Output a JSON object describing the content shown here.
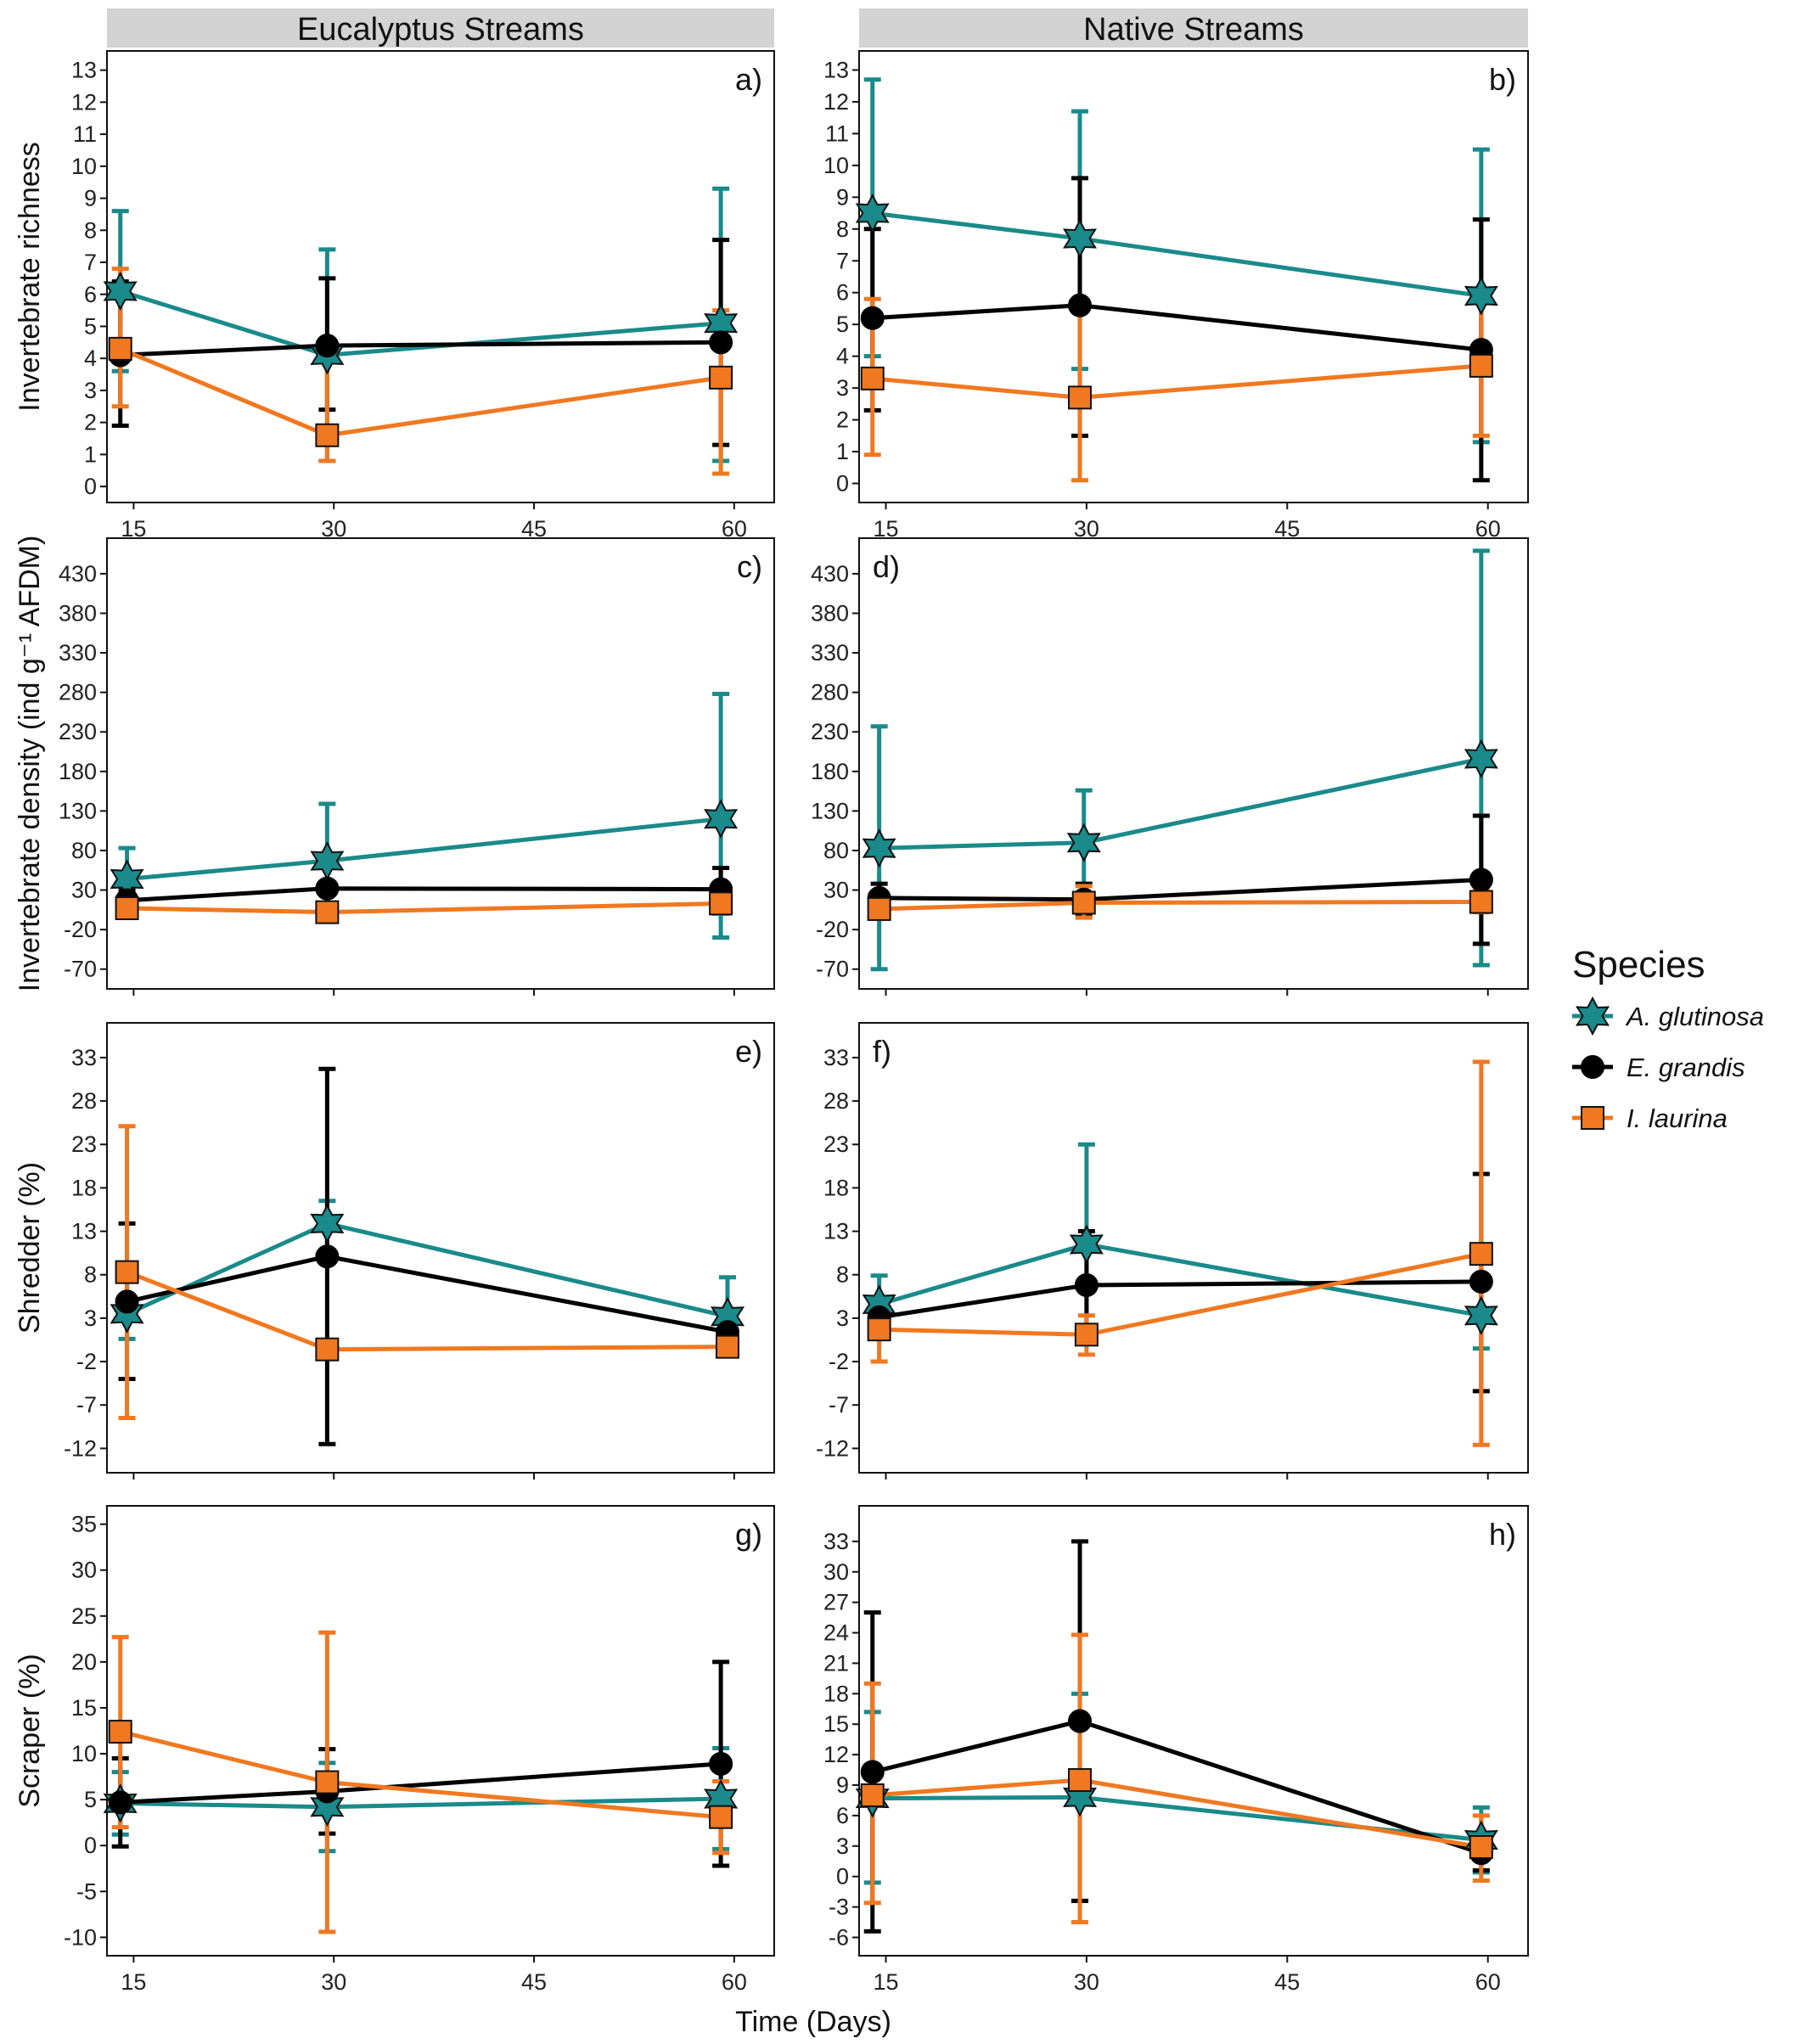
{
  "figure": {
    "strips": [
      "Eucalyptus Streams",
      "Native Streams"
    ],
    "xlabel": "Time (Days)",
    "legend": {
      "title": "Species",
      "placement": "right",
      "entries": [
        {
          "name": "A. glutinosa",
          "color": "#1a8a8a",
          "marker": "star-icon"
        },
        {
          "name": "E. grandis",
          "color": "#000000",
          "marker": "circle-icon"
        },
        {
          "name": "I. laurina",
          "color": "#f07820",
          "marker": "square-icon"
        }
      ]
    }
  },
  "chart_data": [
    {
      "type": "line",
      "panel": "a)",
      "strip": "Eucalyptus Streams",
      "ylabel": "Invertebrate richness",
      "xlim": [
        13,
        63
      ],
      "ylim": [
        -0.5,
        13.6
      ],
      "xticks": [
        15,
        30,
        45,
        60
      ],
      "xticklabels": [
        "15",
        "30",
        "45",
        "60"
      ],
      "yticks": [
        0,
        1,
        2,
        3,
        4,
        5,
        6,
        7,
        8,
        9,
        10,
        11,
        12,
        13
      ],
      "yticklabels": [
        "0",
        "1",
        "2",
        "3",
        "4",
        "5",
        "6",
        "7",
        "8",
        "9",
        "10",
        "11",
        "12",
        "13"
      ],
      "x": [
        14,
        29.5,
        59
      ],
      "series": [
        {
          "name": "A. glutinosa",
          "values": [
            6.1,
            4.1,
            5.1
          ],
          "err_low": [
            3.6,
            0.8,
            0.8
          ],
          "err_high": [
            8.6,
            7.4,
            9.3
          ]
        },
        {
          "name": "E. grandis",
          "values": [
            4.1,
            4.4,
            4.5
          ],
          "err_low": [
            1.9,
            2.4,
            1.3
          ],
          "err_high": [
            6.4,
            6.5,
            7.7
          ]
        },
        {
          "name": "I. laurina",
          "values": [
            4.3,
            1.6,
            3.4
          ],
          "err_low": [
            2.5,
            0.8,
            0.4
          ],
          "err_high": [
            6.8,
            4.3,
            5.5
          ]
        }
      ]
    },
    {
      "type": "line",
      "panel": "b)",
      "strip": "Native Streams",
      "ylabel": "",
      "xlim": [
        13,
        63
      ],
      "ylim": [
        -0.6,
        13.6
      ],
      "xticks": [
        15,
        30,
        45,
        60
      ],
      "xticklabels": [
        "15",
        "30",
        "45",
        "60"
      ],
      "yticks": [
        0,
        1,
        2,
        3,
        4,
        5,
        6,
        7,
        8,
        9,
        10,
        11,
        12,
        13
      ],
      "yticklabels": [
        "0",
        "1",
        "2",
        "3",
        "4",
        "5",
        "6",
        "7",
        "8",
        "9",
        "10",
        "11",
        "12",
        "13"
      ],
      "x": [
        14,
        29.5,
        59.5
      ],
      "series": [
        {
          "name": "A. glutinosa",
          "values": [
            8.5,
            7.7,
            5.9
          ],
          "err_low": [
            4.0,
            3.6,
            1.3
          ],
          "err_high": [
            12.7,
            11.7,
            10.5
          ]
        },
        {
          "name": "E. grandis",
          "values": [
            5.2,
            5.6,
            4.2
          ],
          "err_low": [
            2.3,
            1.5,
            0.1
          ],
          "err_high": [
            8.0,
            9.6,
            8.3
          ]
        },
        {
          "name": "I. laurina",
          "values": [
            3.3,
            2.7,
            3.7
          ],
          "err_low": [
            0.9,
            0.1,
            1.5
          ],
          "err_high": [
            5.8,
            5.6,
            5.8
          ]
        }
      ]
    },
    {
      "type": "line",
      "panel": "c)",
      "strip": "Eucalyptus Streams",
      "ylabel": "Invertebrate  density (ind g⁻¹ AFDM)",
      "xlim": [
        13,
        63
      ],
      "ylim": [
        -95,
        475
      ],
      "xticks": [
        15,
        30,
        45,
        60
      ],
      "xticklabels": [
        "",
        "",
        "",
        ""
      ],
      "yticks": [
        -70,
        -20,
        30,
        80,
        130,
        180,
        230,
        280,
        330,
        380,
        430
      ],
      "yticklabels": [
        "-70",
        "-20",
        "30",
        "80",
        "130",
        "180",
        "230",
        "280",
        "330",
        "380",
        "430"
      ],
      "x": [
        14.5,
        29.5,
        59
      ],
      "series": [
        {
          "name": "A. glutinosa",
          "values": [
            44,
            67,
            120
          ],
          "err_low": [
            7,
            0,
            -30
          ],
          "err_high": [
            83,
            139,
            278
          ]
        },
        {
          "name": "E. grandis",
          "values": [
            17,
            32,
            31
          ],
          "err_low": [
            2,
            3,
            0
          ],
          "err_high": [
            30,
            60,
            58
          ]
        },
        {
          "name": "I. laurina",
          "values": [
            7,
            2,
            13
          ],
          "err_low": [
            2,
            -1,
            0
          ],
          "err_high": [
            12,
            5,
            28
          ]
        }
      ]
    },
    {
      "type": "line",
      "panel": "d)",
      "strip": "Native Streams",
      "ylabel": "",
      "xlim": [
        13,
        63
      ],
      "ylim": [
        -95,
        475
      ],
      "xticks": [
        15,
        30,
        45,
        60
      ],
      "xticklabels": [
        "",
        "",
        "",
        ""
      ],
      "yticks": [
        -70,
        -20,
        30,
        80,
        130,
        180,
        230,
        280,
        330,
        380,
        430
      ],
      "yticklabels": [
        "-70",
        "-20",
        "30",
        "80",
        "130",
        "180",
        "230",
        "280",
        "330",
        "380",
        "430"
      ],
      "x": [
        14.5,
        29.8,
        59.5
      ],
      "series": [
        {
          "name": "A. glutinosa",
          "values": [
            83,
            90,
            196
          ],
          "err_low": [
            -70,
            23,
            -65
          ],
          "err_high": [
            237,
            156,
            459
          ]
        },
        {
          "name": "E. grandis",
          "values": [
            20,
            18,
            43
          ],
          "err_low": [
            2,
            -2,
            -38
          ],
          "err_high": [
            38,
            38,
            124
          ]
        },
        {
          "name": "I. laurina",
          "values": [
            6,
            14,
            15
          ],
          "err_low": [
            -5,
            -5,
            2
          ],
          "err_high": [
            15,
            35,
            30
          ]
        }
      ]
    },
    {
      "type": "line",
      "panel": "e)",
      "strip": "Eucalyptus Streams",
      "ylabel": "Shredder (%)",
      "xlim": [
        13,
        63
      ],
      "ylim": [
        -14.8,
        37
      ],
      "xticks": [
        15,
        30,
        45,
        60
      ],
      "xticklabels": [
        "",
        "",
        "",
        ""
      ],
      "yticks": [
        -12,
        -7,
        -2,
        3,
        8,
        13,
        18,
        23,
        28,
        33
      ],
      "yticklabels": [
        "-12",
        "-7",
        "-2",
        "3",
        "8",
        "13",
        "18",
        "23",
        "28",
        "33"
      ],
      "x": [
        14.5,
        29.5,
        59.5
      ],
      "series": [
        {
          "name": "A. glutinosa",
          "values": [
            3.5,
            13.9,
            3.2
          ],
          "err_low": [
            0.6,
            10.8,
            -1.4
          ],
          "err_high": [
            8.1,
            16.5,
            7.7
          ]
        },
        {
          "name": "E. grandis",
          "values": [
            4.9,
            10.1,
            1.4
          ],
          "err_low": [
            -4.0,
            -11.5,
            0
          ],
          "err_high": [
            13.9,
            31.7,
            2.7
          ]
        },
        {
          "name": "I. laurina",
          "values": [
            8.3,
            -0.6,
            -0.3
          ],
          "err_low": [
            -8.5,
            -0.6,
            -1.0
          ],
          "err_high": [
            25.1,
            -0.6,
            0.4
          ]
        }
      ]
    },
    {
      "type": "line",
      "panel": "f)",
      "strip": "Native Streams",
      "ylabel": "",
      "xlim": [
        13,
        63
      ],
      "ylim": [
        -14.8,
        37
      ],
      "xticks": [
        15,
        30,
        45,
        60
      ],
      "xticklabels": [
        "",
        "",
        "",
        ""
      ],
      "yticks": [
        -12,
        -7,
        -2,
        3,
        8,
        13,
        18,
        23,
        28,
        33
      ],
      "yticklabels": [
        "-12",
        "-7",
        "-2",
        "3",
        "8",
        "13",
        "18",
        "23",
        "28",
        "33"
      ],
      "x": [
        14.5,
        30,
        59.5
      ],
      "series": [
        {
          "name": "A. glutinosa",
          "values": [
            4.6,
            11.5,
            3.3
          ],
          "err_low": [
            1.0,
            0.6,
            -0.5
          ],
          "err_high": [
            7.9,
            23.0,
            7.0
          ]
        },
        {
          "name": "E. grandis",
          "values": [
            3.1,
            6.8,
            7.2
          ],
          "err_low": [
            2.0,
            0.6,
            -5.4
          ],
          "err_high": [
            4.5,
            13.0,
            19.6
          ]
        },
        {
          "name": "I. laurina",
          "values": [
            1.7,
            1.1,
            10.4
          ],
          "err_low": [
            -2.0,
            -1.2,
            -11.6
          ],
          "err_high": [
            5.4,
            3.3,
            32.5
          ]
        }
      ]
    },
    {
      "type": "line",
      "panel": "g)",
      "strip": "Eucalyptus Streams",
      "ylabel": "Scraper (%)",
      "xlim": [
        13,
        63
      ],
      "ylim": [
        -12,
        37
      ],
      "xticks": [
        15,
        30,
        45,
        60
      ],
      "xticklabels": [
        "15",
        "30",
        "45",
        "60"
      ],
      "yticks": [
        -10,
        -5,
        0,
        5,
        10,
        15,
        20,
        25,
        30,
        35
      ],
      "yticklabels": [
        "-10",
        "-5",
        "0",
        "5",
        "10",
        "15",
        "20",
        "25",
        "30",
        "35"
      ],
      "x": [
        14,
        29.5,
        59
      ],
      "series": [
        {
          "name": "A. glutinosa",
          "values": [
            4.6,
            4.2,
            5.1
          ],
          "err_low": [
            1.2,
            -0.6,
            -0.4
          ],
          "err_high": [
            8.0,
            9.0,
            10.6
          ]
        },
        {
          "name": "E. grandis",
          "values": [
            4.7,
            5.9,
            8.9
          ],
          "err_low": [
            -0.1,
            1.3,
            -2.2
          ],
          "err_high": [
            9.5,
            10.5,
            20.0
          ]
        },
        {
          "name": "I. laurina",
          "values": [
            12.4,
            6.9,
            3.1
          ],
          "err_low": [
            2.0,
            -9.4,
            -0.8
          ],
          "err_high": [
            22.7,
            23.2,
            7.0
          ]
        }
      ]
    },
    {
      "type": "line",
      "panel": "h)",
      "strip": "Native Streams",
      "ylabel": "",
      "xlim": [
        13,
        63
      ],
      "ylim": [
        -7.8,
        36.5
      ],
      "xticks": [
        15,
        30,
        45,
        60
      ],
      "xticklabels": [
        "15",
        "30",
        "45",
        "60"
      ],
      "yticks": [
        -6,
        -3,
        0,
        3,
        6,
        9,
        12,
        15,
        18,
        21,
        24,
        27,
        30,
        33
      ],
      "yticklabels": [
        "-6",
        "-3",
        "0",
        "3",
        "6",
        "9",
        "12",
        "15",
        "18",
        "21",
        "24",
        "27",
        "30",
        "33"
      ],
      "x": [
        14,
        29.5,
        59.5
      ],
      "series": [
        {
          "name": "A. glutinosa",
          "values": [
            7.7,
            7.8,
            3.6
          ],
          "err_low": [
            -0.6,
            -2.4,
            0.4
          ],
          "err_high": [
            16.2,
            18.0,
            6.8
          ]
        },
        {
          "name": "E. grandis",
          "values": [
            10.3,
            15.3,
            2.3
          ],
          "err_low": [
            -5.4,
            -2.4,
            0.6
          ],
          "err_high": [
            26.0,
            33.0,
            4.0
          ]
        },
        {
          "name": "I. laurina",
          "values": [
            8.0,
            9.5,
            2.9
          ],
          "err_low": [
            -2.6,
            -4.5,
            -0.4
          ],
          "err_high": [
            19.0,
            23.8,
            6.0
          ]
        }
      ]
    }
  ]
}
